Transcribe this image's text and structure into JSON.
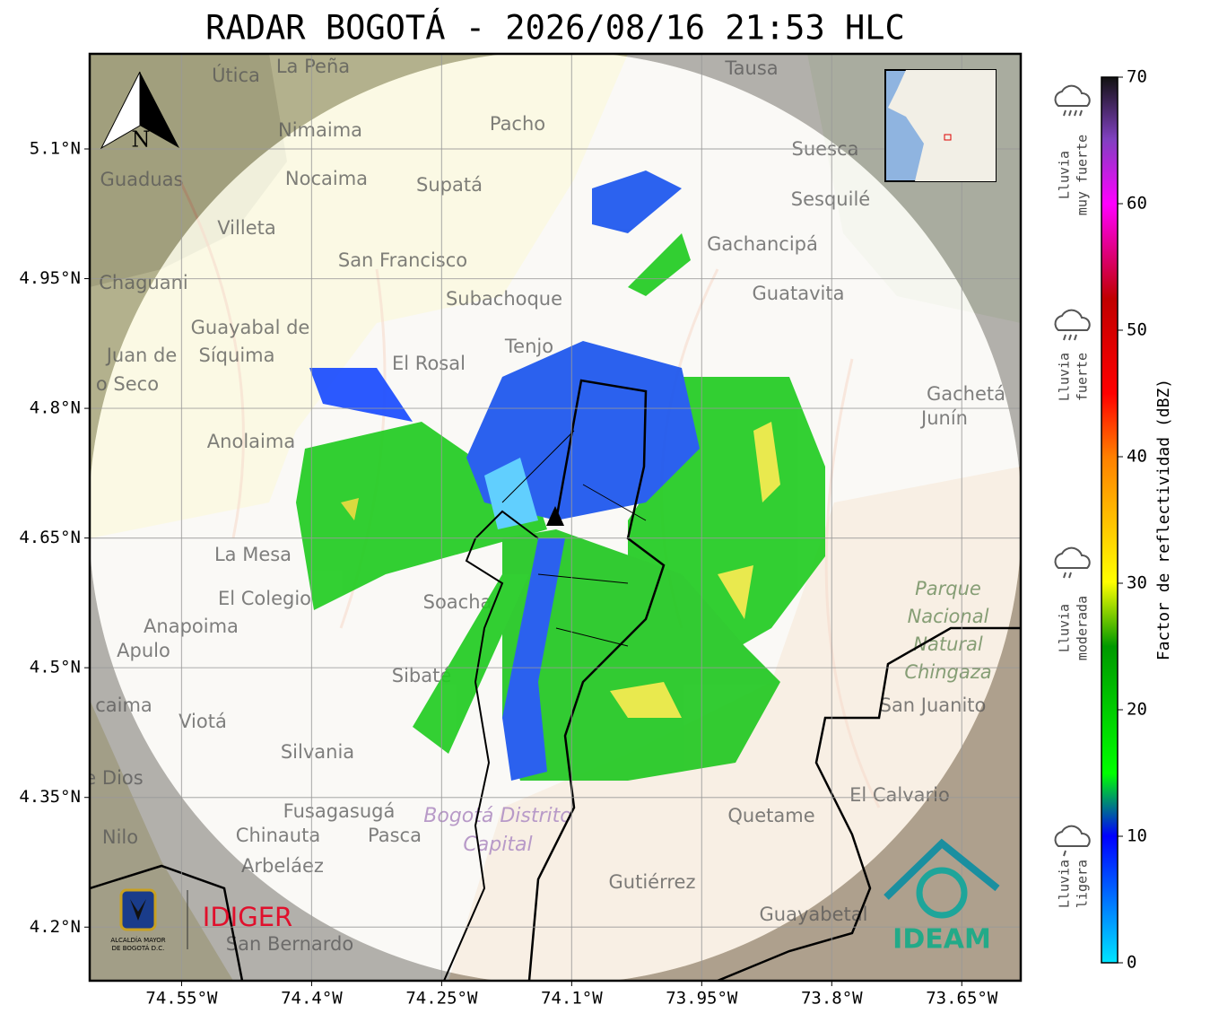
{
  "title": "RADAR BOGOTÁ - 2026/08/16 21:53 HLC",
  "map": {
    "xlim": [
      -74.656,
      -73.582
    ],
    "ylim": [
      4.138,
      5.21
    ],
    "xticks": [
      {
        "value": -74.55,
        "label": "74.55°W"
      },
      {
        "value": -74.4,
        "label": "74.4°W"
      },
      {
        "value": -74.25,
        "label": "74.25°W"
      },
      {
        "value": -74.1,
        "label": "74.1°W"
      },
      {
        "value": -73.95,
        "label": "73.95°W"
      },
      {
        "value": -73.8,
        "label": "73.8°W"
      },
      {
        "value": -73.65,
        "label": "73.65°W"
      }
    ],
    "yticks": [
      {
        "value": 5.1,
        "label": "5.1°N"
      },
      {
        "value": 4.95,
        "label": "4.95°N"
      },
      {
        "value": 4.8,
        "label": "4.8°N"
      },
      {
        "value": 4.65,
        "label": "4.65°N"
      },
      {
        "value": 4.5,
        "label": "4.5°N"
      },
      {
        "value": 4.35,
        "label": "4.35°N"
      },
      {
        "value": 4.2,
        "label": "4.2°N"
      }
    ],
    "grid": true,
    "places": [
      "Útica",
      "La Peña",
      "Tausa",
      "Pacho",
      "Nimaima",
      "Guaduas",
      "Nocaima",
      "Supatá",
      "Suesca",
      "Sesquilé",
      "Villeta",
      "Gachancipá",
      "San Francisco",
      "Chaguani",
      "Guatavita",
      "Subachoque",
      "Guayabal de",
      "Síquima",
      "Tenjo",
      "El Rosal",
      "Juan de",
      "o Seco",
      "Gachetá",
      "Junín",
      "Anolaima",
      "La Mesa",
      "El Colegio",
      "Soacha",
      "Anapoima",
      "Apulo",
      "Sibaté",
      "San Juanito",
      "caima",
      "Viotá",
      "Silvania",
      "e Dios",
      "El Calvario",
      "Fusagasugá",
      "Quetame",
      "Nilo",
      "Chinauta",
      "Pasca",
      "Arbeláez",
      "Gutiérrez",
      "Guayabetal",
      "San Bernardo"
    ],
    "park": [
      "Parque",
      "Nacional",
      "Natural",
      "Chingaza"
    ],
    "district": [
      "Bogotá Distrito",
      "Capital"
    ],
    "north": "N"
  },
  "colorbar": {
    "label": "Factor de reflectividad (dBZ)",
    "range": [
      0,
      70
    ],
    "ticks": [
      0,
      10,
      20,
      30,
      40,
      50,
      60,
      70
    ],
    "classes": [
      [
        "Lluvia",
        "ligera"
      ],
      [
        "Lluvia",
        "moderada"
      ],
      [
        "Lluvia",
        "fuerte"
      ],
      [
        "Lluvia",
        "muy fuerte"
      ]
    ]
  },
  "logos": {
    "alcaldia": [
      "ALCALDÍA MAYOR",
      "DE BOGOTÁ D.C."
    ],
    "idiger": "IDIGER",
    "ideam": "IDEAM"
  }
}
